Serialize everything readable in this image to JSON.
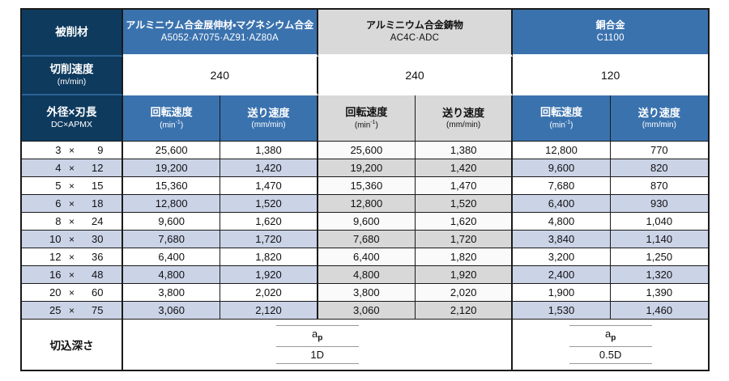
{
  "colors": {
    "navy": "#0e3a5e",
    "blue": "#3a72ae",
    "gray_header": "#d9d9d9",
    "row_alt_blue": "#cbd3e7",
    "row_alt_gray": "#d8d8d8",
    "row_off_white": "#fafafa",
    "border": "#1a1a1a",
    "fraction_line": "#999999",
    "navy_separator": "#2c6295"
  },
  "table": {
    "corner_label": "被削材",
    "cutting_speed_label": "切削速度",
    "cutting_speed_unit": "(m/min)",
    "size_label": "外径×刃長",
    "size_sublabel": "DC×APMX",
    "rotation_header": "回転速度",
    "rotation_unit_pre": "(min",
    "rotation_unit_sup": "-1",
    "rotation_unit_post": ")",
    "feed_header": "送り速度",
    "feed_unit": "(mm/min)",
    "multiply_sign": "×",
    "depth_label": "切込深さ",
    "materials": [
      {
        "name": "アルミニウム合金展伸材・マグネシウム合金",
        "grades": "A5052·A7075·AZ91·AZ80A",
        "style": "blue",
        "cutting_speed": "240"
      },
      {
        "name": "アルミニウム合金鋳物",
        "grades": "AC4C·ADC",
        "style": "gray",
        "cutting_speed": "240"
      },
      {
        "name": "銅合金",
        "grades": "C1100",
        "style": "blue",
        "cutting_speed": "120"
      }
    ],
    "rows": [
      {
        "dc": "3",
        "apmx": "9",
        "values": [
          "25,600",
          "1,380",
          "25,600",
          "1,380",
          "12,800",
          "770"
        ]
      },
      {
        "dc": "4",
        "apmx": "12",
        "values": [
          "19,200",
          "1,420",
          "19,200",
          "1,420",
          "9,600",
          "820"
        ]
      },
      {
        "dc": "5",
        "apmx": "15",
        "values": [
          "15,360",
          "1,470",
          "15,360",
          "1,470",
          "7,680",
          "870"
        ]
      },
      {
        "dc": "6",
        "apmx": "18",
        "values": [
          "12,800",
          "1,520",
          "12,800",
          "1,520",
          "6,400",
          "930"
        ]
      },
      {
        "dc": "8",
        "apmx": "24",
        "values": [
          "9,600",
          "1,620",
          "9,600",
          "1,620",
          "4,800",
          "1,040"
        ]
      },
      {
        "dc": "10",
        "apmx": "30",
        "values": [
          "7,680",
          "1,720",
          "7,680",
          "1,720",
          "3,840",
          "1,140"
        ]
      },
      {
        "dc": "12",
        "apmx": "36",
        "values": [
          "6,400",
          "1,820",
          "6,400",
          "1,820",
          "3,200",
          "1,250"
        ]
      },
      {
        "dc": "16",
        "apmx": "48",
        "values": [
          "4,800",
          "1,920",
          "4,800",
          "1,920",
          "2,400",
          "1,320"
        ]
      },
      {
        "dc": "20",
        "apmx": "60",
        "values": [
          "3,800",
          "2,020",
          "3,800",
          "2,020",
          "1,900",
          "1,390"
        ]
      },
      {
        "dc": "25",
        "apmx": "75",
        "values": [
          "3,060",
          "2,120",
          "3,060",
          "2,120",
          "1,530",
          "1,460"
        ]
      }
    ],
    "depth": [
      {
        "sym_base": "a",
        "sym_sub": "p",
        "value": "1D"
      },
      {
        "sym_base": "a",
        "sym_sub": "p",
        "value": "0.5D"
      }
    ]
  }
}
